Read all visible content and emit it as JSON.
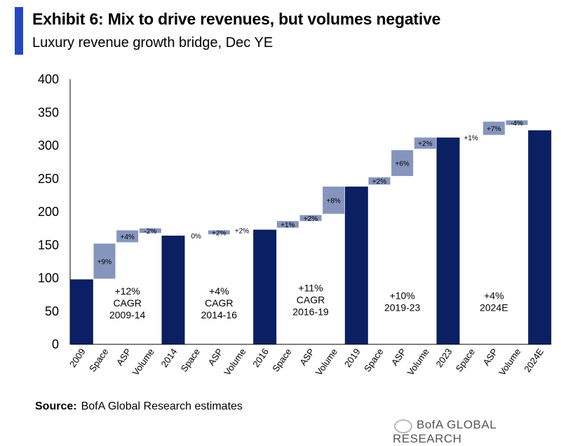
{
  "header": {
    "title": "Exhibit 6: Mix to drive revenues, but volumes negative",
    "subtitle": "Luxury revenue growth bridge, Dec YE"
  },
  "colors": {
    "accent": "#2548c2",
    "total_bar": "#0b1f63",
    "step_bar": "#8595bd",
    "axis": "#000000"
  },
  "chart_data": {
    "type": "bar",
    "title": "Luxury revenue growth bridge, Dec YE",
    "ylim": [
      0,
      400
    ],
    "yticks": [
      0,
      50,
      100,
      150,
      200,
      250,
      300,
      350,
      400
    ],
    "grid": false,
    "categories": [
      "2009",
      "Space",
      "ASP",
      "Volume",
      "2014",
      "Space",
      "ASP",
      "Volume",
      "2016",
      "Space",
      "ASP",
      "Volume",
      "2019",
      "Space",
      "ASP",
      "Volume",
      "2023",
      "Space",
      "ASP",
      "Volume",
      "2024E"
    ],
    "bars": [
      {
        "kind": "total",
        "base": 0,
        "top": 98
      },
      {
        "kind": "step",
        "base": 99,
        "top": 152,
        "label": "+9%"
      },
      {
        "kind": "step",
        "base": 154,
        "top": 172,
        "label": "+4%"
      },
      {
        "kind": "step",
        "base": 168,
        "top": 175,
        "label": "-2%"
      },
      {
        "kind": "total",
        "base": 0,
        "top": 164
      },
      {
        "kind": "label_only",
        "value": 164,
        "label": "0%"
      },
      {
        "kind": "step",
        "base": 166,
        "top": 172,
        "label": "+2%"
      },
      {
        "kind": "label_only",
        "value": 172,
        "label": "+2%"
      },
      {
        "kind": "total",
        "base": 0,
        "top": 173
      },
      {
        "kind": "step",
        "base": 176,
        "top": 186,
        "label": "+1%"
      },
      {
        "kind": "step",
        "base": 186,
        "top": 195,
        "label": "+2%"
      },
      {
        "kind": "step",
        "base": 197,
        "top": 238,
        "label": "+8%"
      },
      {
        "kind": "total",
        "base": 0,
        "top": 238
      },
      {
        "kind": "step",
        "base": 241,
        "top": 252,
        "label": "+2%"
      },
      {
        "kind": "step",
        "base": 254,
        "top": 293,
        "label": "+6%"
      },
      {
        "kind": "step",
        "base": 295,
        "top": 312,
        "label": "+2%"
      },
      {
        "kind": "total",
        "base": 0,
        "top": 312
      },
      {
        "kind": "label_only",
        "value": 312,
        "label": "+1%"
      },
      {
        "kind": "step",
        "base": 316,
        "top": 336,
        "label": "+7%"
      },
      {
        "kind": "step",
        "base": 331,
        "top": 338,
        "label": "-4%"
      },
      {
        "kind": "total",
        "base": 0,
        "top": 323
      }
    ],
    "annotations": [
      {
        "between": [
          1,
          3
        ],
        "lines": [
          "+12%",
          "CAGR",
          "2009-14"
        ],
        "y": 75
      },
      {
        "between": [
          5,
          7
        ],
        "lines": [
          "+4%",
          "CAGR",
          "2014-16"
        ],
        "y": 75
      },
      {
        "between": [
          9,
          11
        ],
        "lines": [
          "+11%",
          "CAGR",
          "2016-19"
        ],
        "y": 80
      },
      {
        "between": [
          13,
          15
        ],
        "lines": [
          "+10%",
          "2019-23"
        ],
        "y": 68
      },
      {
        "between": [
          17,
          19
        ],
        "lines": [
          "+4%",
          "2024E"
        ],
        "y": 68
      }
    ]
  },
  "footer": {
    "source_label": "Source:",
    "source_text": "BofA Global Research estimates",
    "brand": "BofA GLOBAL RESEARCH"
  }
}
